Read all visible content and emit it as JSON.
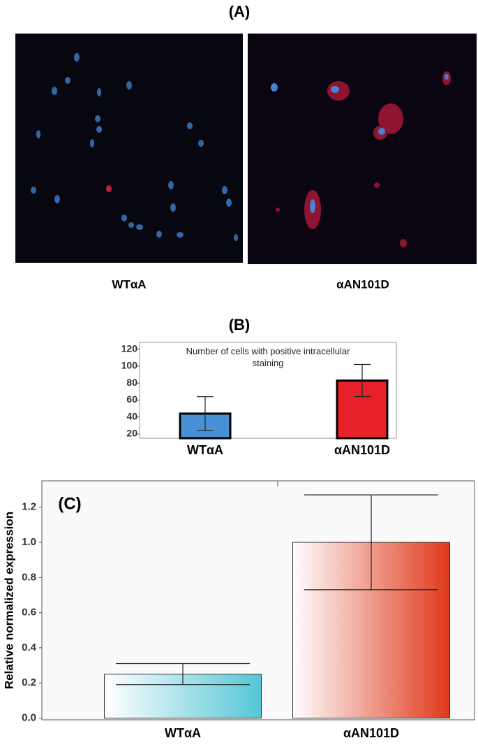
{
  "panel_a": {
    "label": "(A)",
    "images": [
      {
        "caption": "WTαA"
      },
      {
        "caption": "αAN101D"
      }
    ]
  },
  "chart_data": [
    {
      "type": "bar",
      "panel_label": "(B)",
      "title": "Number of cells with positive intracellular staining",
      "categories": [
        "WTαA",
        "αAN101D"
      ],
      "series": [
        {
          "values": [
            44,
            83
          ],
          "errors": [
            20,
            19
          ],
          "colors": [
            "#4a90d4",
            "#e8202a"
          ]
        }
      ],
      "ylim": [
        15,
        128
      ],
      "yticks": [
        20,
        40,
        60,
        80,
        100,
        120
      ]
    },
    {
      "type": "bar",
      "panel_label": "(C)",
      "y_label": "Relative normalized expression",
      "categories": [
        "WTαA",
        "αAN101D"
      ],
      "series": [
        {
          "values": [
            0.25,
            1.0
          ],
          "errors": [
            0.06,
            0.27
          ],
          "colors": [
            "#55c6d6",
            "#e0381a"
          ]
        }
      ],
      "ylim": [
        -0.01,
        1.35
      ],
      "yticks": [
        {
          "value": 0,
          "label": "0.0"
        },
        {
          "value": 0.2,
          "label": "0.2"
        },
        {
          "value": 0.4,
          "label": "0.4"
        },
        {
          "value": 0.6,
          "label": "0.6"
        },
        {
          "value": 0.8,
          "label": "0.8"
        },
        {
          "value": 1,
          "label": "1.0"
        },
        {
          "value": 1.2,
          "label": "1.2"
        }
      ]
    }
  ]
}
